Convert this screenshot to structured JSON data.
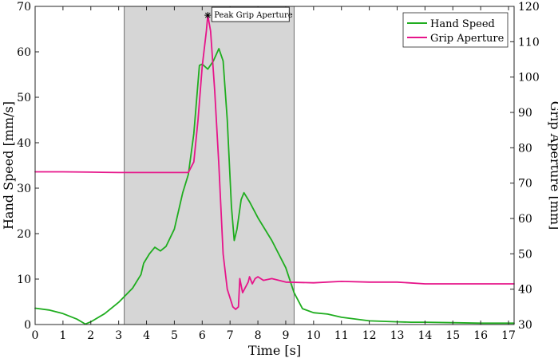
{
  "chart_data": {
    "type": "line",
    "xlabel": "Time [s]",
    "ylabel_left": "Hand Speed [mm/s]",
    "ylabel_right": "Grip Aperture [mm]",
    "xlim": [
      0,
      17.2
    ],
    "ylim_left": [
      0,
      70
    ],
    "ylim_right": [
      30,
      120
    ],
    "x_ticks": [
      "0",
      "1",
      "2",
      "3",
      "4",
      "5",
      "6",
      "7",
      "8",
      "9",
      "10",
      "11",
      "12",
      "13",
      "14",
      "15",
      "16",
      "17"
    ],
    "y_left_ticks": [
      "0",
      "10",
      "20",
      "30",
      "40",
      "50",
      "60",
      "70"
    ],
    "y_right_ticks": [
      "30",
      "40",
      "50",
      "60",
      "70",
      "80",
      "90",
      "100",
      "110",
      "120"
    ],
    "grid": false,
    "legend_placement": "top-right",
    "shaded_region": {
      "x_start": 3.2,
      "x_end": 9.3
    },
    "annotation": {
      "text": "Peak Grip Aperture",
      "x": 6.2,
      "y_right": 117.5
    },
    "series": [
      {
        "name": "Hand Speed",
        "axis": "left",
        "color": "#1fad1f",
        "points": [
          [
            0,
            3.6
          ],
          [
            0.5,
            3.2
          ],
          [
            1,
            2.4
          ],
          [
            1.5,
            1.2
          ],
          [
            1.8,
            0.1
          ],
          [
            2.0,
            0.6
          ],
          [
            2.5,
            2.4
          ],
          [
            3.0,
            4.9
          ],
          [
            3.5,
            8
          ],
          [
            3.8,
            11
          ],
          [
            3.9,
            13.5
          ],
          [
            4.1,
            15.5
          ],
          [
            4.3,
            17
          ],
          [
            4.5,
            16.2
          ],
          [
            4.7,
            17.2
          ],
          [
            5.0,
            21
          ],
          [
            5.3,
            29
          ],
          [
            5.5,
            33
          ],
          [
            5.7,
            42
          ],
          [
            5.9,
            57
          ],
          [
            6.0,
            57.3
          ],
          [
            6.2,
            56.2
          ],
          [
            6.4,
            58
          ],
          [
            6.6,
            60.7
          ],
          [
            6.75,
            58
          ],
          [
            6.9,
            45
          ],
          [
            7.05,
            26
          ],
          [
            7.15,
            18.5
          ],
          [
            7.25,
            21
          ],
          [
            7.4,
            27.5
          ],
          [
            7.5,
            29
          ],
          [
            7.7,
            27
          ],
          [
            8.0,
            23.5
          ],
          [
            8.5,
            18.5
          ],
          [
            9.0,
            12.5
          ],
          [
            9.3,
            7
          ],
          [
            9.6,
            3.5
          ],
          [
            10.0,
            2.6
          ],
          [
            10.5,
            2.3
          ],
          [
            11,
            1.6
          ],
          [
            12,
            0.8
          ],
          [
            13,
            0.6
          ],
          [
            13.5,
            0.5
          ],
          [
            14,
            0.5
          ],
          [
            15,
            0.4
          ],
          [
            16,
            0.3
          ],
          [
            17.2,
            0.3
          ]
        ]
      },
      {
        "name": "Grip Aperture",
        "axis": "right",
        "color": "#e6158a",
        "points": [
          [
            0,
            73.2
          ],
          [
            1,
            73.2
          ],
          [
            2,
            73.1
          ],
          [
            3,
            73.0
          ],
          [
            4,
            73.0
          ],
          [
            5,
            73.0
          ],
          [
            5.5,
            73.0
          ],
          [
            5.7,
            76
          ],
          [
            5.85,
            88
          ],
          [
            6.0,
            103
          ],
          [
            6.15,
            113
          ],
          [
            6.2,
            117.5
          ],
          [
            6.3,
            113
          ],
          [
            6.45,
            96
          ],
          [
            6.6,
            75
          ],
          [
            6.75,
            50
          ],
          [
            6.9,
            40
          ],
          [
            7.1,
            35
          ],
          [
            7.2,
            34.3
          ],
          [
            7.3,
            35
          ],
          [
            7.35,
            43
          ],
          [
            7.45,
            39
          ],
          [
            7.55,
            40.5
          ],
          [
            7.65,
            42
          ],
          [
            7.7,
            43.5
          ],
          [
            7.8,
            41.5
          ],
          [
            7.9,
            43
          ],
          [
            8.0,
            43.5
          ],
          [
            8.2,
            42.5
          ],
          [
            8.5,
            43
          ],
          [
            9.0,
            42
          ],
          [
            10.0,
            41.8
          ],
          [
            11,
            42.2
          ],
          [
            12,
            42
          ],
          [
            13,
            42
          ],
          [
            14,
            41.5
          ],
          [
            15,
            41.5
          ],
          [
            16,
            41.5
          ],
          [
            17.2,
            41.5
          ]
        ]
      }
    ]
  }
}
